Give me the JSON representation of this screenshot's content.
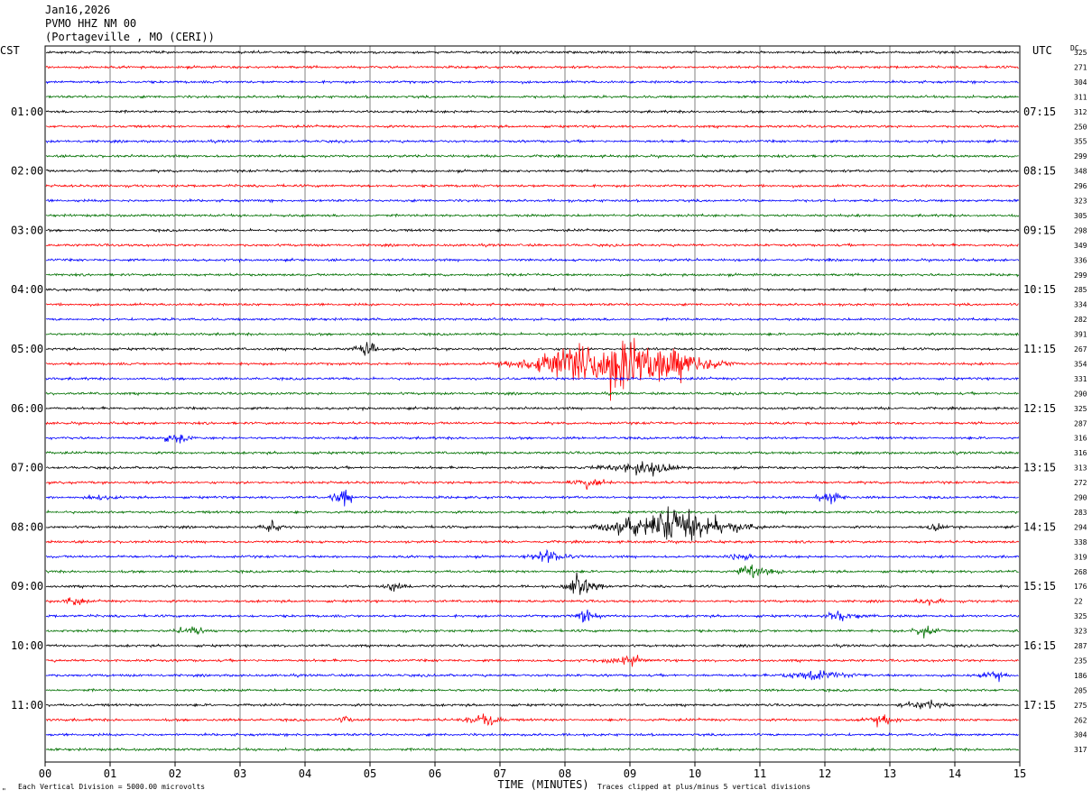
{
  "header": {
    "date": "Jan16,2026",
    "station": "PVMO HHZ NM 00",
    "location": "(Portageville , MO (CERI))"
  },
  "left_timezone": "CST",
  "right_timezone": "UTC",
  "dc_label": "DC",
  "footer": {
    "scale_note": "Each Vertical Division = 5000.00 microvolts",
    "clip_note": "Traces clipped at plus/minus 5 vertical divisions",
    "corner_mark": "\""
  },
  "chart_data": {
    "type": "line",
    "xlabel": "TIME (MINUTES)",
    "xlim": [
      0,
      15
    ],
    "x_ticks": [
      "00",
      "01",
      "02",
      "03",
      "04",
      "05",
      "06",
      "07",
      "08",
      "09",
      "10",
      "11",
      "12",
      "13",
      "14",
      "15"
    ],
    "trace_colors": [
      "#000000",
      "#ff0000",
      "#0000ff",
      "#007000"
    ],
    "num_traces": 48,
    "left_hour_labels": [
      "01:00",
      "02:00",
      "03:00",
      "04:00",
      "05:00",
      "06:00",
      "07:00",
      "08:00",
      "09:00",
      "10:00",
      "11:00"
    ],
    "right_hour_labels": [
      "07:15",
      "08:15",
      "09:15",
      "10:15",
      "11:15",
      "12:15",
      "13:15",
      "14:15",
      "15:15",
      "16:15",
      "17:15"
    ],
    "dc_values": [
      325,
      271,
      304,
      311,
      312,
      250,
      355,
      299,
      348,
      296,
      323,
      305,
      298,
      349,
      336,
      299,
      285,
      334,
      282,
      391,
      267,
      354,
      331,
      290,
      325,
      287,
      316,
      316,
      313,
      272,
      290,
      283,
      294,
      338,
      319,
      268,
      176,
      22,
      325,
      323,
      287,
      235,
      186,
      205,
      275,
      262,
      304,
      317
    ],
    "events": [
      {
        "trace": 21,
        "start": 6.7,
        "end": 10.8,
        "peak": 9.0,
        "amplitude": 60
      },
      {
        "trace": 20,
        "start": 4.7,
        "end": 5.3,
        "peak": 4.9,
        "amplitude": 15
      },
      {
        "trace": 26,
        "start": 1.7,
        "end": 2.4,
        "peak": 2.0,
        "amplitude": 10
      },
      {
        "trace": 28,
        "start": 8.2,
        "end": 9.9,
        "peak": 9.3,
        "amplitude": 14
      },
      {
        "trace": 29,
        "start": 7.9,
        "end": 8.9,
        "peak": 8.4,
        "amplitude": 9
      },
      {
        "trace": 30,
        "start": 4.3,
        "end": 4.8,
        "peak": 4.6,
        "amplitude": 16
      },
      {
        "trace": 30,
        "start": 11.8,
        "end": 12.4,
        "peak": 12.1,
        "amplitude": 10
      },
      {
        "trace": 30,
        "start": 0.6,
        "end": 1.2,
        "peak": 0.8,
        "amplitude": 5
      },
      {
        "trace": 32,
        "start": 8.2,
        "end": 11.2,
        "peak": 9.6,
        "amplitude": 40
      },
      {
        "trace": 32,
        "start": 3.2,
        "end": 3.7,
        "peak": 3.45,
        "amplitude": 10
      },
      {
        "trace": 32,
        "start": 13.5,
        "end": 13.9,
        "peak": 13.7,
        "amplitude": 8
      },
      {
        "trace": 34,
        "start": 7.3,
        "end": 8.3,
        "peak": 7.7,
        "amplitude": 10
      },
      {
        "trace": 34,
        "start": 10.4,
        "end": 11.0,
        "peak": 10.7,
        "amplitude": 9
      },
      {
        "trace": 35,
        "start": 10.4,
        "end": 11.6,
        "peak": 10.9,
        "amplitude": 10
      },
      {
        "trace": 36,
        "start": 7.9,
        "end": 8.7,
        "peak": 8.2,
        "amplitude": 22
      },
      {
        "trace": 36,
        "start": 5.1,
        "end": 5.7,
        "peak": 5.4,
        "amplitude": 10
      },
      {
        "trace": 37,
        "start": 0.2,
        "end": 0.8,
        "peak": 0.45,
        "amplitude": 8
      },
      {
        "trace": 37,
        "start": 13.3,
        "end": 13.9,
        "peak": 13.6,
        "amplitude": 8
      },
      {
        "trace": 38,
        "start": 8.1,
        "end": 8.6,
        "peak": 8.3,
        "amplitude": 20
      },
      {
        "trace": 38,
        "start": 11.9,
        "end": 12.8,
        "peak": 12.2,
        "amplitude": 10
      },
      {
        "trace": 39,
        "start": 1.9,
        "end": 2.6,
        "peak": 2.3,
        "amplitude": 10
      },
      {
        "trace": 39,
        "start": 13.2,
        "end": 13.9,
        "peak": 13.5,
        "amplitude": 10
      },
      {
        "trace": 41,
        "start": 8.4,
        "end": 9.4,
        "peak": 9.0,
        "amplitude": 9
      },
      {
        "trace": 42,
        "start": 11.2,
        "end": 12.8,
        "peak": 11.7,
        "amplitude": 9
      },
      {
        "trace": 42,
        "start": 14.3,
        "end": 14.9,
        "peak": 14.6,
        "amplitude": 10
      },
      {
        "trace": 44,
        "start": 13.0,
        "end": 14.0,
        "peak": 13.5,
        "amplitude": 10
      },
      {
        "trace": 45,
        "start": 6.3,
        "end": 7.1,
        "peak": 6.8,
        "amplitude": 14
      },
      {
        "trace": 45,
        "start": 12.5,
        "end": 13.3,
        "peak": 12.9,
        "amplitude": 11
      },
      {
        "trace": 45,
        "start": 4.4,
        "end": 4.8,
        "peak": 4.6,
        "amplitude": 6
      }
    ]
  }
}
